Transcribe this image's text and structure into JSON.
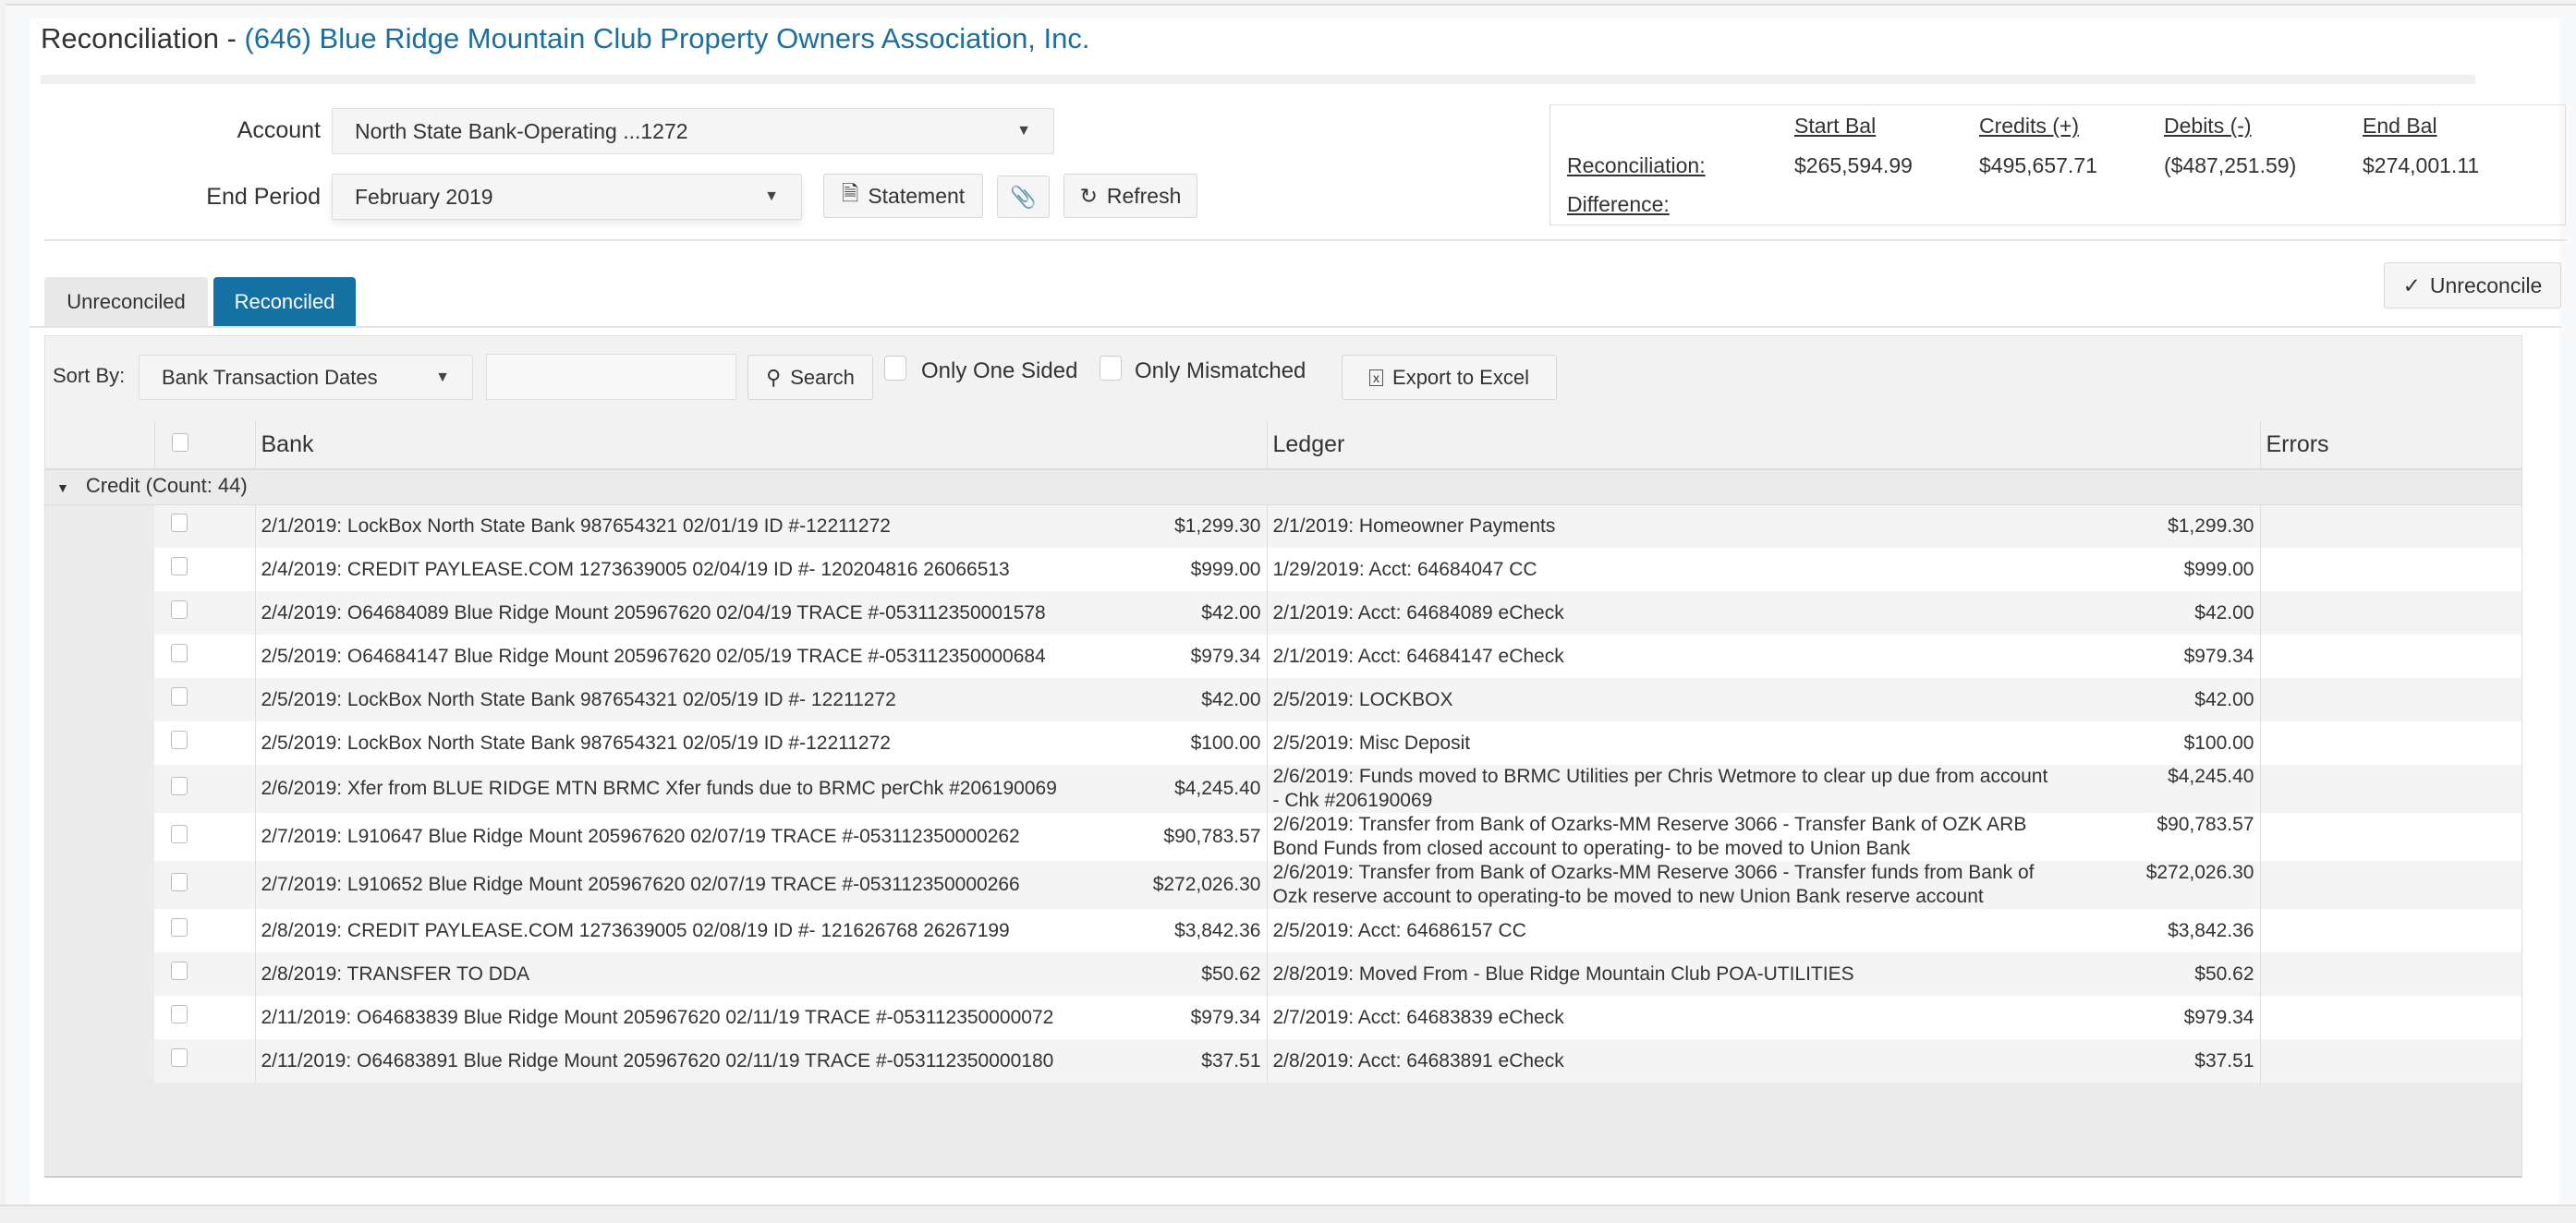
{
  "header": {
    "title_prefix": "Reconciliation - ",
    "organization": "(646) Blue Ridge Mountain Club Property Owners Association, Inc."
  },
  "filters": {
    "account_label": "Account",
    "account_value": "North State Bank-Operating ...1272",
    "end_period_label": "End Period",
    "end_period_value": "February 2019",
    "statement_label": "Statement",
    "refresh_label": "Refresh"
  },
  "summary": {
    "headers": [
      "Start Bal",
      "Credits (+)",
      "Debits (-)",
      "End Bal"
    ],
    "reconciliation_label": "Reconciliation:",
    "difference_label": "Difference:",
    "values": [
      "$265,594.99",
      "$495,657.71",
      "($487,251.59)",
      "$274,001.11"
    ]
  },
  "tabs": [
    {
      "label": "Unreconciled",
      "active": false
    },
    {
      "label": "Reconciled",
      "active": true
    }
  ],
  "unreconcile_label": "Unreconcile",
  "toolbar": {
    "sort_by_label": "Sort By:",
    "sort_by_value": "Bank Transaction Dates",
    "search_value": "",
    "search_label": "Search",
    "only_one_sided_label": "Only One Sided",
    "only_mismatched_label": "Only Mismatched",
    "export_label": "Export to Excel"
  },
  "table": {
    "columns": [
      "Bank",
      "Ledger",
      "Errors"
    ],
    "group_label": "Credit (Count: 44)",
    "rows": [
      {
        "bank": "2/1/2019: LockBox North State Bank 987654321 02/01/19 ID #-12211272",
        "bank_amount": "$1,299.30",
        "ledger": "2/1/2019: Homeowner Payments",
        "ledger_amount": "$1,299.30",
        "errors": ""
      },
      {
        "bank": "2/4/2019: CREDIT PAYLEASE.COM 1273639005 02/04/19 ID #- 120204816 26066513",
        "bank_amount": "$999.00",
        "ledger": "1/29/2019: Acct: 64684047 CC",
        "ledger_amount": "$999.00",
        "errors": ""
      },
      {
        "bank": "2/4/2019: O64684089 Blue Ridge Mount 205967620 02/04/19 TRACE #-053112350001578",
        "bank_amount": "$42.00",
        "ledger": "2/1/2019: Acct: 64684089 eCheck",
        "ledger_amount": "$42.00",
        "errors": ""
      },
      {
        "bank": "2/5/2019: O64684147 Blue Ridge Mount 205967620 02/05/19 TRACE #-053112350000684",
        "bank_amount": "$979.34",
        "ledger": "2/1/2019: Acct: 64684147 eCheck",
        "ledger_amount": "$979.34",
        "errors": ""
      },
      {
        "bank": "2/5/2019: LockBox North State Bank 987654321 02/05/19 ID #- 12211272",
        "bank_amount": "$42.00",
        "ledger": "2/5/2019: LOCKBOX",
        "ledger_amount": "$42.00",
        "errors": ""
      },
      {
        "bank": "2/5/2019: LockBox North State Bank 987654321 02/05/19 ID #-12211272",
        "bank_amount": "$100.00",
        "ledger": "2/5/2019: Misc Deposit",
        "ledger_amount": "$100.00",
        "errors": ""
      },
      {
        "bank": "2/6/2019: Xfer from BLUE RIDGE MTN BRMC Xfer funds due to BRMC perChk #206190069",
        "bank_amount": "$4,245.40",
        "ledger": "2/6/2019: Funds moved to BRMC Utilities per Chris Wetmore to clear up due from account - Chk #206190069",
        "ledger_amount": "$4,245.40",
        "errors": ""
      },
      {
        "bank": "2/7/2019: L910647 Blue Ridge Mount 205967620 02/07/19 TRACE #-053112350000262",
        "bank_amount": "$90,783.57",
        "ledger": "2/6/2019: Transfer from Bank of Ozarks-MM Reserve 3066 - Transfer Bank of OZK ARB Bond Funds from closed account to operating- to be moved to Union Bank",
        "ledger_amount": "$90,783.57",
        "errors": ""
      },
      {
        "bank": "2/7/2019: L910652 Blue Ridge Mount 205967620 02/07/19 TRACE #-053112350000266",
        "bank_amount": "$272,026.30",
        "ledger": "2/6/2019: Transfer from Bank of Ozarks-MM Reserve 3066 - Transfer funds from Bank of Ozk reserve account to operating-to be moved to new Union Bank reserve account",
        "ledger_amount": "$272,026.30",
        "errors": ""
      },
      {
        "bank": "2/8/2019: CREDIT PAYLEASE.COM 1273639005 02/08/19 ID #- 121626768 26267199",
        "bank_amount": "$3,842.36",
        "ledger": "2/5/2019: Acct: 64686157 CC",
        "ledger_amount": "$3,842.36",
        "errors": ""
      },
      {
        "bank": "2/8/2019: TRANSFER TO DDA",
        "bank_amount": "$50.62",
        "ledger": "2/8/2019: Moved From - Blue Ridge Mountain Club POA-UTILITIES",
        "ledger_amount": "$50.62",
        "errors": ""
      },
      {
        "bank": "2/11/2019: O64683839 Blue Ridge Mount 205967620 02/11/19 TRACE #-053112350000072",
        "bank_amount": "$979.34",
        "ledger": "2/7/2019: Acct: 64683839 eCheck",
        "ledger_amount": "$979.34",
        "errors": ""
      },
      {
        "bank": "2/11/2019: O64683891 Blue Ridge Mount 205967620 02/11/19 TRACE #-053112350000180",
        "bank_amount": "$37.51",
        "ledger": "2/8/2019: Acct: 64683891 eCheck",
        "ledger_amount": "$37.51",
        "errors": ""
      }
    ]
  },
  "colors": {
    "accent": "#1571a3",
    "title_link": "#1a6fa0"
  }
}
